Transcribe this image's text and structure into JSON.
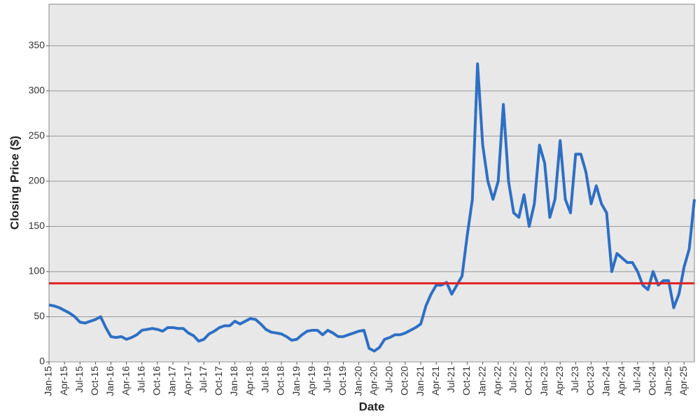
{
  "chart_data": {
    "type": "line",
    "xlabel": "Date",
    "ylabel": "Closing Price ($)",
    "x": [
      "Jan-15",
      "Feb-15",
      "Mar-15",
      "Apr-15",
      "May-15",
      "Jun-15",
      "Jul-15",
      "Aug-15",
      "Sep-15",
      "Oct-15",
      "Nov-15",
      "Dec-15",
      "Jan-16",
      "Feb-16",
      "Mar-16",
      "Apr-16",
      "May-16",
      "Jun-16",
      "Jul-16",
      "Aug-16",
      "Sep-16",
      "Oct-16",
      "Nov-16",
      "Dec-16",
      "Jan-17",
      "Feb-17",
      "Mar-17",
      "Apr-17",
      "May-17",
      "Jun-17",
      "Jul-17",
      "Aug-17",
      "Sep-17",
      "Oct-17",
      "Nov-17",
      "Dec-17",
      "Jan-18",
      "Feb-18",
      "Mar-18",
      "Apr-18",
      "May-18",
      "Jun-18",
      "Jul-18",
      "Aug-18",
      "Sep-18",
      "Oct-18",
      "Nov-18",
      "Dec-18",
      "Jan-19",
      "Feb-19",
      "Mar-19",
      "Apr-19",
      "May-19",
      "Jun-19",
      "Jul-19",
      "Aug-19",
      "Sep-19",
      "Oct-19",
      "Nov-19",
      "Dec-19",
      "Jan-20",
      "Feb-20",
      "Mar-20",
      "Apr-20",
      "May-20",
      "Jun-20",
      "Jul-20",
      "Aug-20",
      "Sep-20",
      "Oct-20",
      "Nov-20",
      "Dec-20",
      "Jan-21",
      "Feb-21",
      "Mar-21",
      "Apr-21",
      "May-21",
      "Jun-21",
      "Jul-21",
      "Aug-21",
      "Sep-21",
      "Oct-21",
      "Nov-21",
      "Dec-21",
      "Jan-22",
      "Feb-22",
      "Mar-22",
      "Apr-22",
      "May-22",
      "Jun-22",
      "Jul-22",
      "Aug-22",
      "Sep-22",
      "Oct-22",
      "Nov-22",
      "Dec-22",
      "Jan-23",
      "Feb-23",
      "Mar-23",
      "Apr-23",
      "May-23",
      "Jun-23",
      "Jul-23",
      "Aug-23",
      "Sep-23",
      "Oct-23",
      "Nov-23",
      "Dec-23",
      "Jan-24",
      "Feb-24",
      "Mar-24",
      "Apr-24",
      "May-24",
      "Jun-24",
      "Jul-24",
      "Aug-24",
      "Sep-24",
      "Oct-24",
      "Nov-24",
      "Dec-24",
      "Jan-25",
      "Feb-25",
      "Mar-25",
      "Apr-25",
      "May-25",
      "Jun-25"
    ],
    "series": [
      {
        "color": "#2e6fc4",
        "values": [
          63,
          62,
          60,
          57,
          54,
          50,
          44,
          43,
          45,
          47,
          50,
          38,
          28,
          27,
          28,
          25,
          27,
          30,
          35,
          36,
          37,
          36,
          34,
          38,
          38,
          37,
          37,
          32,
          29,
          23,
          25,
          31,
          34,
          38,
          40,
          40,
          45,
          42,
          45,
          48,
          47,
          42,
          36,
          33,
          32,
          31,
          28,
          24,
          25,
          30,
          34,
          35,
          35,
          30,
          35,
          32,
          28,
          28,
          30,
          32,
          34,
          35,
          15,
          12,
          16,
          25,
          27,
          30,
          30,
          32,
          35,
          38,
          42,
          62,
          75,
          85,
          85,
          88,
          75,
          85,
          95,
          140,
          180,
          330,
          240,
          200,
          180,
          200,
          285,
          200,
          165,
          160,
          185,
          150,
          175,
          240,
          220,
          160,
          180,
          245,
          180,
          165,
          230,
          230,
          210,
          175,
          195,
          175,
          165,
          100,
          120,
          115,
          110,
          110,
          100,
          85,
          80,
          100,
          85,
          90,
          90,
          60,
          75,
          105,
          125,
          180
        ]
      }
    ],
    "hline": {
      "value": 87,
      "color": "#e02020"
    },
    "xlim": [
      "Jan-15",
      "Jun-25"
    ],
    "xticks": [
      "Jan-15",
      "Apr-15",
      "Jul-15",
      "Oct-15",
      "Jan-16",
      "Apr-16",
      "Jul-16",
      "Oct-16",
      "Jan-17",
      "Apr-17",
      "Jul-17",
      "Oct-17",
      "Jan-18",
      "Apr-18",
      "Jul-18",
      "Oct-18",
      "Jan-19",
      "Apr-19",
      "Jul-19",
      "Oct-19",
      "Jan-20",
      "Apr-20",
      "Jul-20",
      "Oct-20",
      "Jan-21",
      "Apr-21",
      "Jul-21",
      "Oct-21",
      "Jan-22",
      "Apr-22",
      "Jul-22",
      "Oct-22",
      "Jan-23",
      "Apr-23",
      "Jul-23",
      "Oct-23",
      "Jan-24",
      "Apr-24",
      "Jul-24",
      "Oct-24",
      "Jan-25",
      "Apr-25"
    ],
    "ylim": [
      0,
      396
    ],
    "yticks": [
      0,
      50,
      100,
      150,
      200,
      250,
      300,
      350
    ],
    "grid": true
  }
}
